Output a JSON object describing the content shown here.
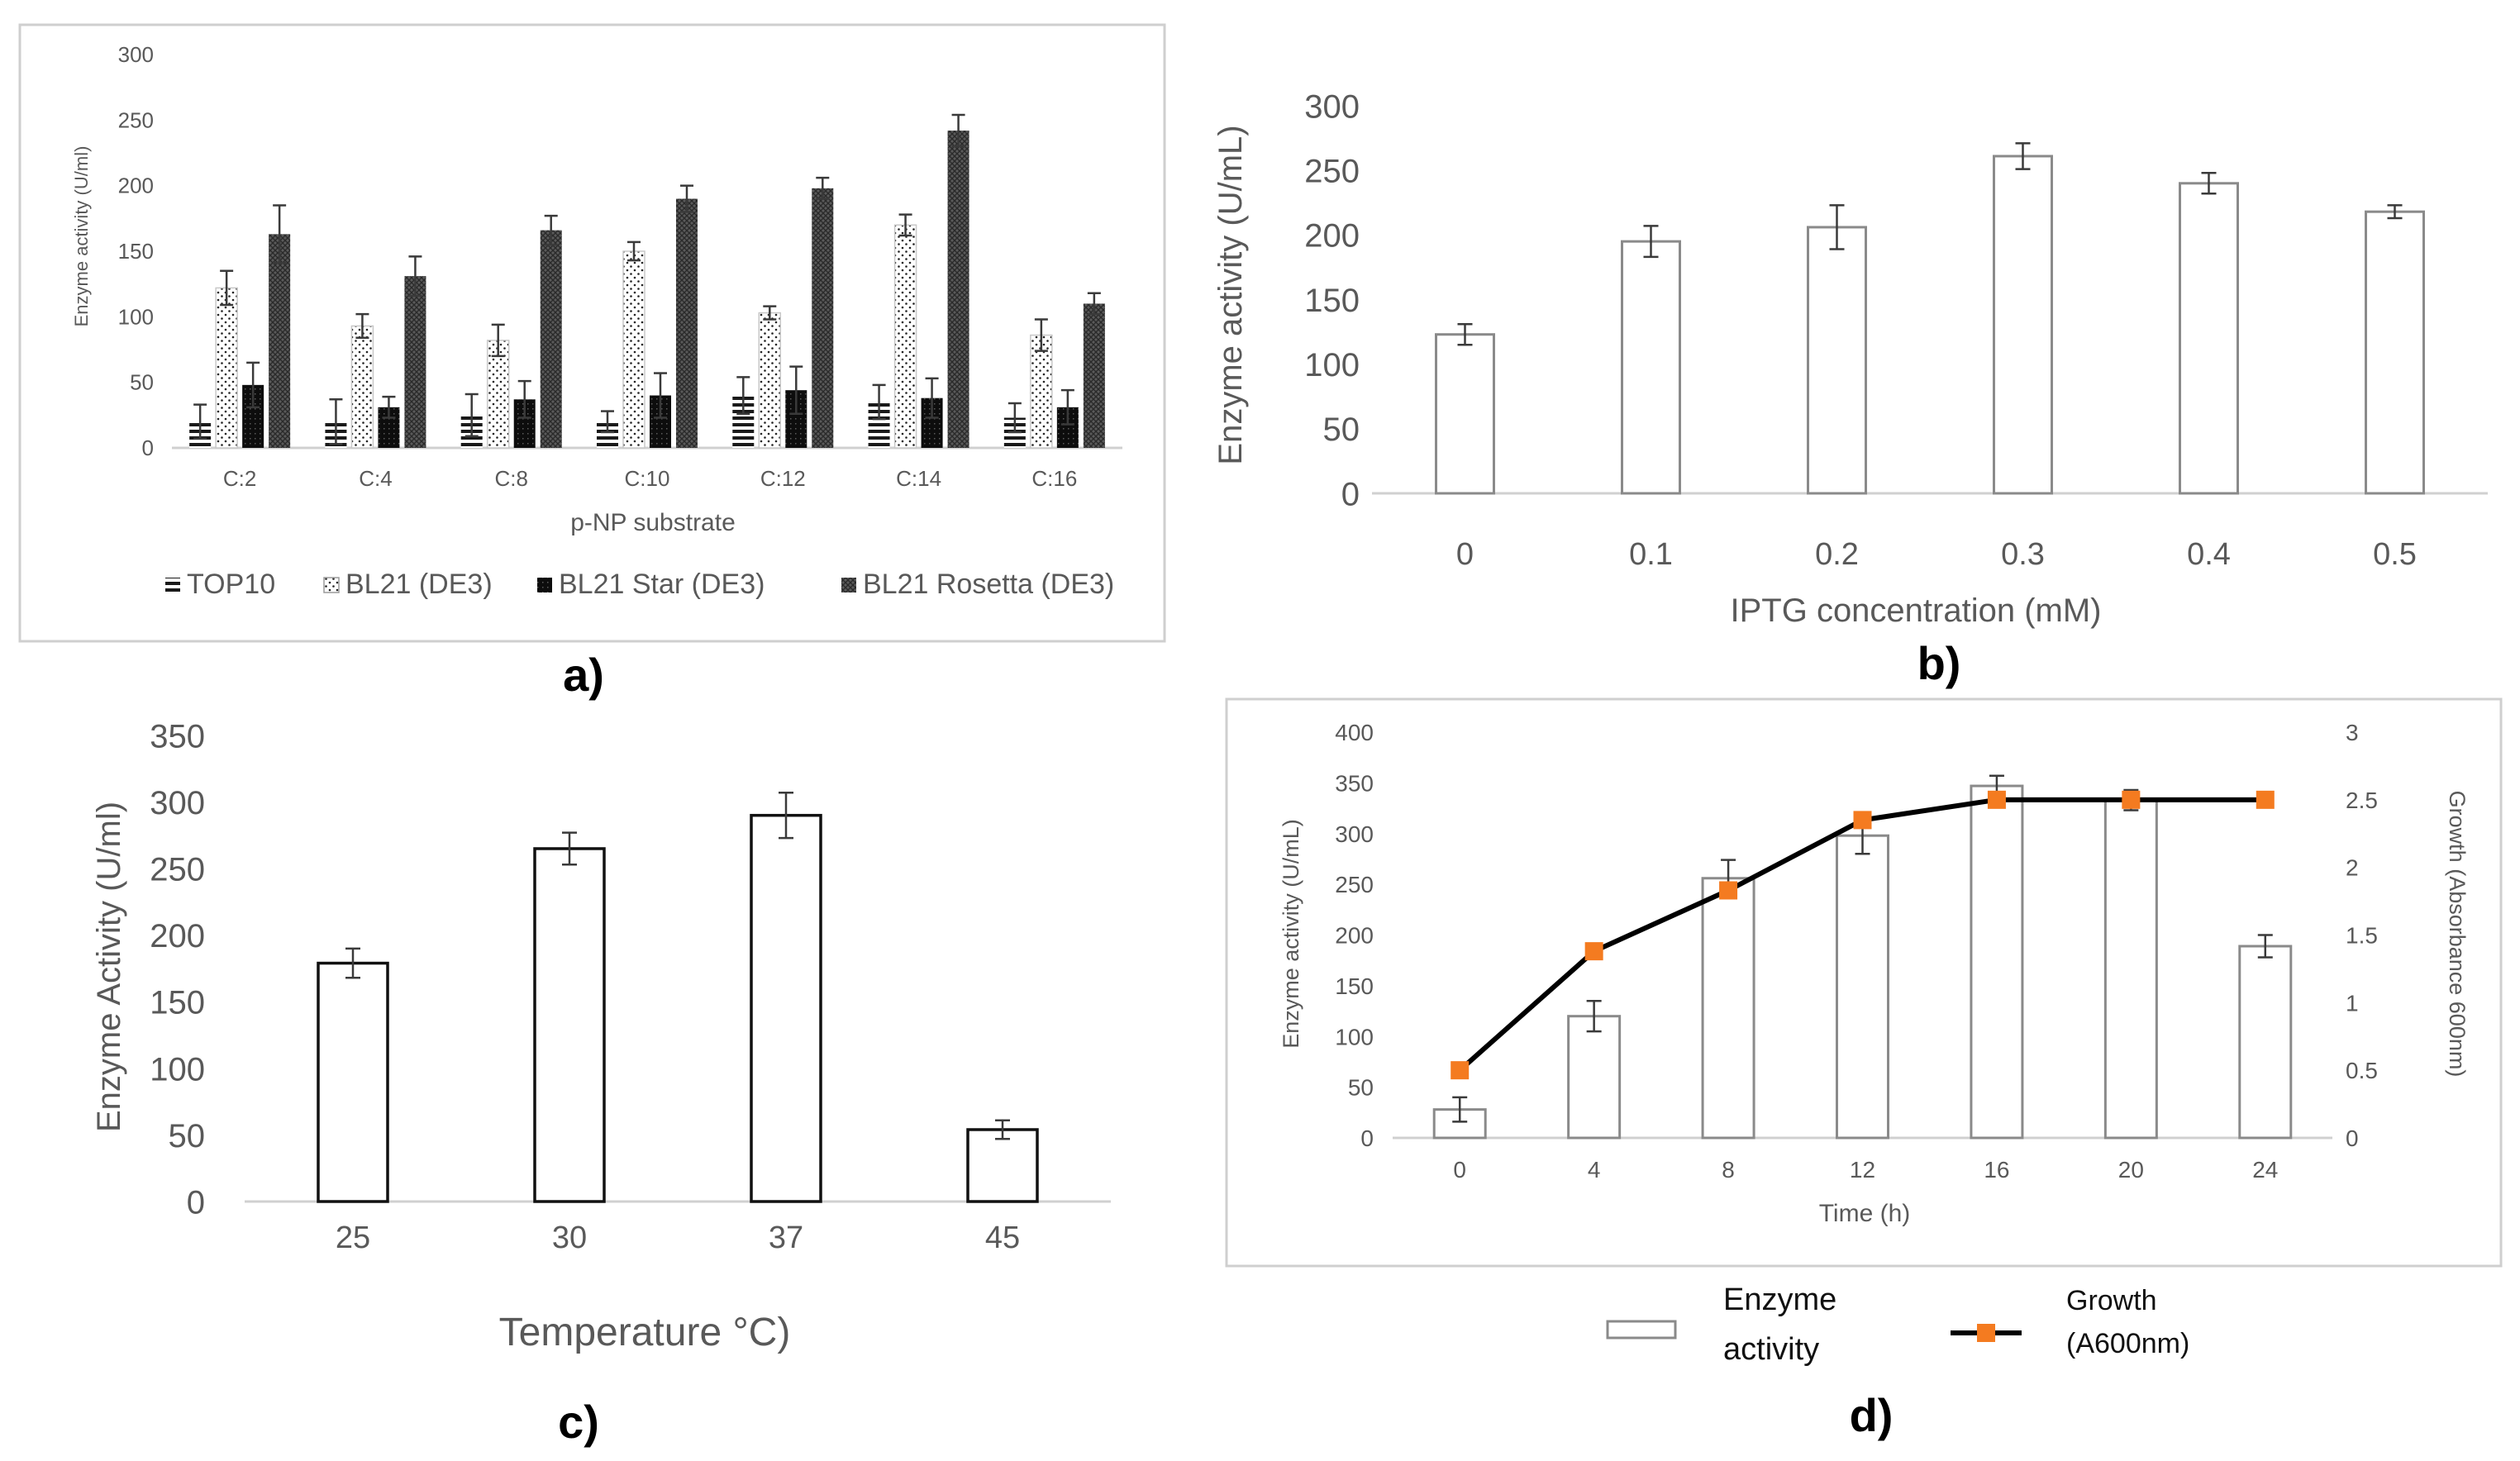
{
  "figure_labels": {
    "a": "a)",
    "b": "b)",
    "c": "c)",
    "d": "d)"
  },
  "chart_data": [
    {
      "id": "a",
      "type": "bar",
      "title": "",
      "xlabel": "p-NP substrate",
      "ylabel": "Enzyme activity (U/ml)",
      "ylim": [
        0,
        300
      ],
      "yticks": [
        0,
        50,
        100,
        150,
        200,
        250,
        300
      ],
      "categories": [
        "C:2",
        "C:4",
        "C:8",
        "C:10",
        "C:12",
        "C:14",
        "C:16"
      ],
      "series": [
        {
          "name": "TOP10",
          "pattern": "horizontal-stripes",
          "values": [
            20,
            20,
            25,
            20,
            40,
            35,
            23
          ],
          "errors": [
            13,
            17,
            16,
            8,
            14,
            13,
            11
          ]
        },
        {
          "name": "BL21 (DE3)",
          "pattern": "dots",
          "values": [
            122,
            93,
            82,
            150,
            103,
            170,
            86
          ],
          "errors": [
            13,
            9,
            12,
            7,
            5,
            8,
            12
          ]
        },
        {
          "name": "BL21 Star (DE3)",
          "pattern": "solid-black",
          "values": [
            48,
            31,
            37,
            40,
            44,
            38,
            31
          ],
          "errors": [
            17,
            8,
            14,
            17,
            18,
            15,
            13
          ]
        },
        {
          "name": "BL21 Rosetta (DE3)",
          "pattern": "crosshatch",
          "values": [
            163,
            131,
            166,
            190,
            198,
            242,
            110
          ],
          "errors": [
            22,
            15,
            11,
            10,
            8,
            12,
            8
          ]
        }
      ],
      "legend": "bottom"
    },
    {
      "id": "b",
      "type": "bar",
      "title": "",
      "xlabel": "IPTG concentration (mM)",
      "ylabel": "Enzyme activity (U/mL)",
      "ylim": [
        0,
        300
      ],
      "yticks": [
        0,
        50,
        100,
        150,
        200,
        250,
        300
      ],
      "categories": [
        "0",
        "0.1",
        "0.2",
        "0.3",
        "0.4",
        "0.5"
      ],
      "values": [
        123,
        195,
        206,
        261,
        240,
        218
      ],
      "errors": [
        8,
        12,
        17,
        10,
        8,
        5
      ]
    },
    {
      "id": "c",
      "type": "bar",
      "title": "",
      "xlabel": "Temperature °C)",
      "ylabel": "Enzyme Activity (U/ml)",
      "ylim": [
        0,
        350
      ],
      "yticks": [
        0,
        50,
        100,
        150,
        200,
        250,
        300,
        350
      ],
      "categories": [
        "25",
        "30",
        "37",
        "45"
      ],
      "values": [
        179,
        265,
        290,
        54
      ],
      "errors": [
        11,
        12,
        17,
        7
      ]
    },
    {
      "id": "d",
      "type": "bar+line",
      "title": "",
      "xlabel": "Time (h)",
      "ylabel": "Enzyme activity (U/mL)",
      "y2label": "Growth (Absorbance 600nm)",
      "ylim": [
        0,
        400
      ],
      "yticks": [
        0,
        50,
        100,
        150,
        200,
        250,
        300,
        350,
        400
      ],
      "y2lim": [
        0,
        3
      ],
      "y2ticks": [
        "0",
        "0.5",
        "1",
        "1.5",
        "2",
        "2.5",
        "3"
      ],
      "categories": [
        "0",
        "4",
        "8",
        "12",
        "16",
        "20",
        "24"
      ],
      "series": [
        {
          "name": "Enzyme activity",
          "axis": "left",
          "type": "bar",
          "values": [
            28,
            120,
            256,
            298,
            347,
            333,
            189
          ],
          "errors": [
            12,
            15,
            18,
            18,
            10,
            10,
            11
          ]
        },
        {
          "name": "Growth (A600nm)",
          "axis": "right",
          "type": "line",
          "color": "#f47b20",
          "values": [
            0.5,
            1.38,
            1.83,
            2.35,
            2.5,
            2.5,
            2.5
          ]
        }
      ],
      "legend": "bottom",
      "legend_lines": {
        "bar": [
          "Enzyme",
          "activity"
        ],
        "line": [
          "Growth",
          "(A600nm)"
        ]
      }
    }
  ]
}
